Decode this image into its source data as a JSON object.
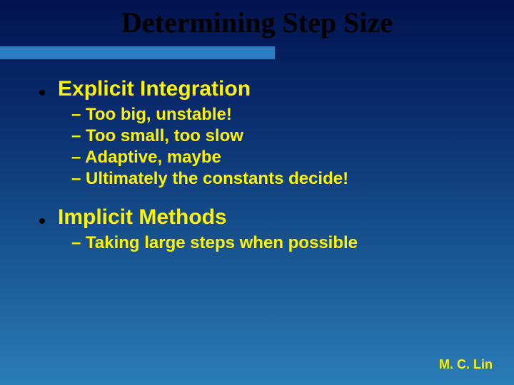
{
  "slide": {
    "title": "Determining Step Size",
    "bullets": [
      {
        "label": "Explicit Integration",
        "subs": [
          "– Too big, unstable!",
          "– Too small, too slow",
          "– Adaptive, maybe",
          "– Ultimately the constants decide!"
        ]
      },
      {
        "label": "Implicit Methods",
        "subs": [
          "– Taking large steps when possible"
        ]
      }
    ],
    "footer": "M. C. Lin"
  },
  "style": {
    "background_gradient": [
      "#02134e",
      "#0a2d6e",
      "#1a5a96",
      "#2a7db8"
    ],
    "title_color": "#000000",
    "title_font": "Times New Roman",
    "title_fontsize": 40,
    "underline_color": "#2b7cc0",
    "underline_width": 385,
    "underline_height": 18,
    "bullet_dot_color": "#000000",
    "bullet_dot_size": 8,
    "bullet_text_color": "#fef200",
    "bullet_fontsize": 30,
    "sub_text_color": "#fef200",
    "sub_fontsize": 24,
    "footer_color": "#fef200",
    "footer_fontsize": 18
  }
}
